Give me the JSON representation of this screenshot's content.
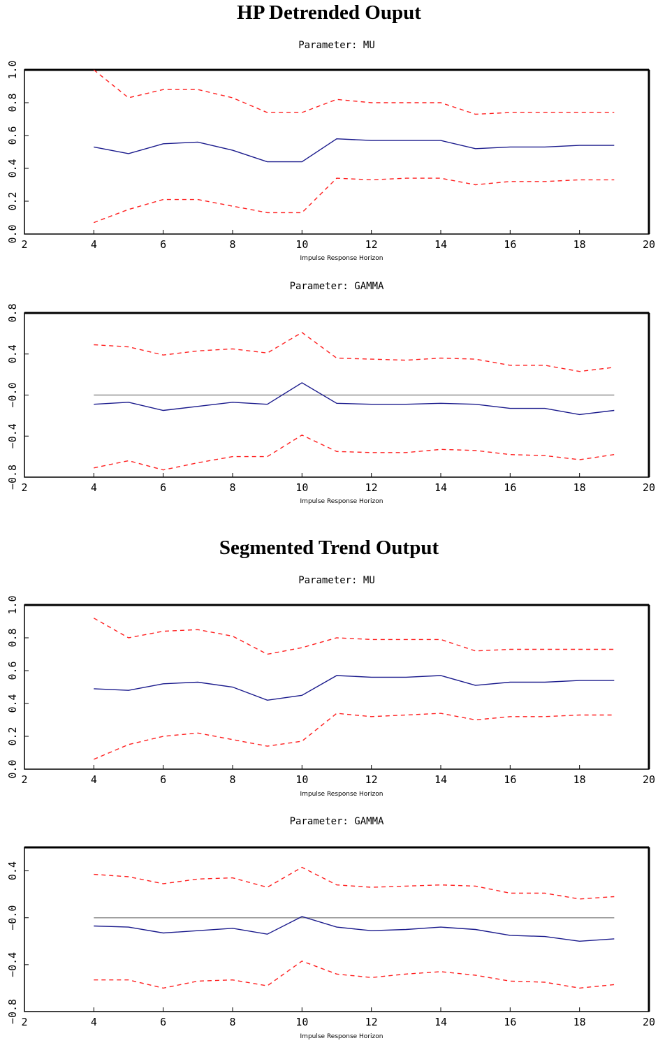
{
  "sections": [
    {
      "title": "HP Detrended Ouput"
    },
    {
      "title": "Segmented Trend Output"
    }
  ],
  "colors": {
    "estimate": "#1a1a8c",
    "bands": "#ff2020",
    "zero_line": "#909090",
    "axis": "#000000"
  },
  "chart_data": [
    {
      "type": "line",
      "title": "Parameter: MU",
      "xlabel": "Impulse Response Horizon",
      "ylabel": "",
      "xlim": [
        2,
        20
      ],
      "ylim": [
        0,
        1
      ],
      "xticks": [
        2,
        4,
        6,
        8,
        10,
        12,
        14,
        16,
        18,
        20
      ],
      "xtick_labels": [
        "2",
        "4",
        "6",
        "8",
        "10",
        "12",
        "14",
        "16",
        "18",
        "20"
      ],
      "yticks": [
        0,
        0.2,
        0.4,
        0.6,
        0.8,
        1.0
      ],
      "ytick_labels": [
        "0.0",
        "0.2",
        "0.4",
        "0.6",
        "0.8",
        "1.0"
      ],
      "zero_line": false,
      "x": [
        4,
        5,
        6,
        7,
        8,
        9,
        10,
        11,
        12,
        13,
        14,
        15,
        16,
        17,
        18,
        19
      ],
      "series": [
        {
          "style": "solid",
          "values": [
            0.53,
            0.49,
            0.55,
            0.56,
            0.51,
            0.44,
            0.44,
            0.58,
            0.57,
            0.57,
            0.57,
            0.52,
            0.53,
            0.53,
            0.54,
            0.54
          ]
        },
        {
          "style": "dashed",
          "values": [
            1.0,
            0.83,
            0.88,
            0.88,
            0.83,
            0.74,
            0.74,
            0.82,
            0.8,
            0.8,
            0.8,
            0.73,
            0.74,
            0.74,
            0.74,
            0.74
          ]
        },
        {
          "style": "dashed",
          "values": [
            0.07,
            0.15,
            0.21,
            0.21,
            0.17,
            0.13,
            0.13,
            0.34,
            0.33,
            0.34,
            0.34,
            0.3,
            0.32,
            0.32,
            0.33,
            0.33
          ]
        }
      ]
    },
    {
      "type": "line",
      "title": "Parameter: GAMMA",
      "xlabel": "Impulse Response Horizon",
      "ylabel": "",
      "xlim": [
        2,
        20
      ],
      "ylim": [
        -0.8,
        0.8
      ],
      "xticks": [
        2,
        4,
        6,
        8,
        10,
        12,
        14,
        16,
        18,
        20
      ],
      "xtick_labels": [
        "2",
        "4",
        "6",
        "8",
        "10",
        "12",
        "14",
        "16",
        "18",
        "20"
      ],
      "yticks": [
        -0.8,
        -0.4,
        0,
        0.4,
        0.8
      ],
      "ytick_labels": [
        "−0.8",
        "−0.4",
        "−0.0",
        "0.4",
        "0.8"
      ],
      "zero_line": true,
      "x": [
        4,
        5,
        6,
        7,
        8,
        9,
        10,
        11,
        12,
        13,
        14,
        15,
        16,
        17,
        18,
        19
      ],
      "series": [
        {
          "style": "solid",
          "values": [
            -0.09,
            -0.07,
            -0.15,
            -0.11,
            -0.07,
            -0.09,
            0.12,
            -0.08,
            -0.09,
            -0.09,
            -0.08,
            -0.09,
            -0.13,
            -0.13,
            -0.19,
            -0.15
          ]
        },
        {
          "style": "dashed",
          "values": [
            0.49,
            0.47,
            0.39,
            0.43,
            0.45,
            0.41,
            0.61,
            0.36,
            0.35,
            0.34,
            0.36,
            0.35,
            0.29,
            0.29,
            0.23,
            0.27
          ]
        },
        {
          "style": "dashed",
          "values": [
            -0.71,
            -0.64,
            -0.73,
            -0.66,
            -0.6,
            -0.6,
            -0.39,
            -0.55,
            -0.56,
            -0.56,
            -0.53,
            -0.54,
            -0.58,
            -0.59,
            -0.63,
            -0.58
          ]
        }
      ]
    },
    {
      "type": "line",
      "title": "Parameter: MU",
      "xlabel": "Impulse Response Horizon",
      "ylabel": "",
      "xlim": [
        2,
        20
      ],
      "ylim": [
        0,
        1
      ],
      "xticks": [
        2,
        4,
        6,
        8,
        10,
        12,
        14,
        16,
        18,
        20
      ],
      "xtick_labels": [
        "2",
        "4",
        "6",
        "8",
        "10",
        "12",
        "14",
        "16",
        "18",
        "20"
      ],
      "yticks": [
        0,
        0.2,
        0.4,
        0.6,
        0.8,
        1.0
      ],
      "ytick_labels": [
        "0.0",
        "0.2",
        "0.4",
        "0.6",
        "0.8",
        "1.0"
      ],
      "zero_line": false,
      "x": [
        4,
        5,
        6,
        7,
        8,
        9,
        10,
        11,
        12,
        13,
        14,
        15,
        16,
        17,
        18,
        19
      ],
      "series": [
        {
          "style": "solid",
          "values": [
            0.49,
            0.48,
            0.52,
            0.53,
            0.5,
            0.42,
            0.45,
            0.57,
            0.56,
            0.56,
            0.57,
            0.51,
            0.53,
            0.53,
            0.54,
            0.54
          ]
        },
        {
          "style": "dashed",
          "values": [
            0.92,
            0.8,
            0.84,
            0.85,
            0.81,
            0.7,
            0.74,
            0.8,
            0.79,
            0.79,
            0.79,
            0.72,
            0.73,
            0.73,
            0.73,
            0.73
          ]
        },
        {
          "style": "dashed",
          "values": [
            0.06,
            0.15,
            0.2,
            0.22,
            0.18,
            0.14,
            0.17,
            0.34,
            0.32,
            0.33,
            0.34,
            0.3,
            0.32,
            0.32,
            0.33,
            0.33
          ]
        }
      ]
    },
    {
      "type": "line",
      "title": "Parameter: GAMMA",
      "xlabel": "Impulse Response Horizon",
      "ylabel": "",
      "xlim": [
        2,
        20
      ],
      "ylim": [
        -0.8,
        0.6
      ],
      "xticks": [
        2,
        4,
        6,
        8,
        10,
        12,
        14,
        16,
        18,
        20
      ],
      "xtick_labels": [
        "2",
        "4",
        "6",
        "8",
        "10",
        "12",
        "14",
        "16",
        "18",
        "20"
      ],
      "yticks": [
        -0.8,
        -0.4,
        0,
        0.4
      ],
      "ytick_labels": [
        "−0.8",
        "−0.4",
        "−0.0",
        "0.4"
      ],
      "zero_line": true,
      "x": [
        4,
        5,
        6,
        7,
        8,
        9,
        10,
        11,
        12,
        13,
        14,
        15,
        16,
        17,
        18,
        19
      ],
      "series": [
        {
          "style": "solid",
          "values": [
            -0.07,
            -0.08,
            -0.13,
            -0.11,
            -0.09,
            -0.14,
            0.01,
            -0.08,
            -0.11,
            -0.1,
            -0.08,
            -0.1,
            -0.15,
            -0.16,
            -0.2,
            -0.18
          ]
        },
        {
          "style": "dashed",
          "values": [
            0.37,
            0.35,
            0.29,
            0.33,
            0.34,
            0.26,
            0.43,
            0.28,
            0.26,
            0.27,
            0.28,
            0.27,
            0.21,
            0.21,
            0.16,
            0.18
          ]
        },
        {
          "style": "dashed",
          "values": [
            -0.53,
            -0.53,
            -0.6,
            -0.54,
            -0.53,
            -0.58,
            -0.37,
            -0.48,
            -0.51,
            -0.48,
            -0.46,
            -0.49,
            -0.54,
            -0.55,
            -0.6,
            -0.57
          ]
        }
      ]
    }
  ]
}
